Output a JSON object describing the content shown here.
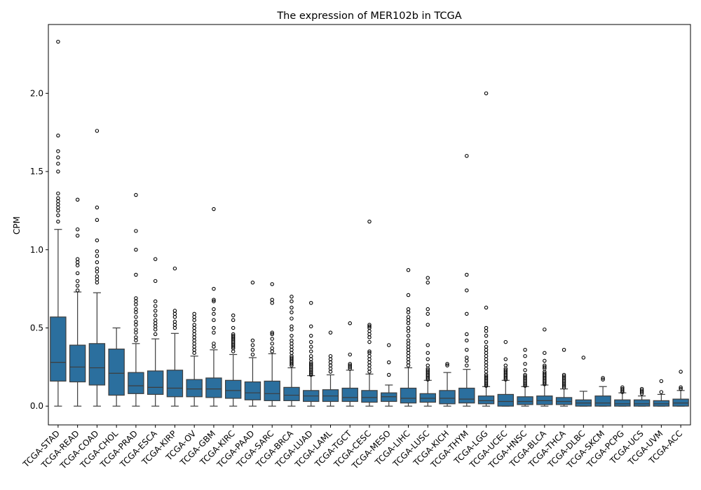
{
  "chart_data": {
    "type": "box",
    "title": "The expression of MER102b in TCGA",
    "xlabel": "",
    "ylabel": "CPM",
    "ylim": [
      -0.12,
      2.44
    ],
    "yticks": [
      0.0,
      0.5,
      1.0,
      1.5,
      2.0
    ],
    "ytick_labels": [
      "0.0",
      "0.5",
      "1.0",
      "1.5",
      "2.0"
    ],
    "grid": false,
    "box_color": "#2b6f9e",
    "categories": [
      "TCGA-STAD",
      "TCGA-READ",
      "TCGA-COAD",
      "TCGA-CHOL",
      "TCGA-PRAD",
      "TCGA-ESCA",
      "TCGA-KIRP",
      "TCGA-OV",
      "TCGA-GBM",
      "TCGA-KIRC",
      "TCGA-PAAD",
      "TCGA-SARC",
      "TCGA-BRCA",
      "TCGA-LUAD",
      "TCGA-LAML",
      "TCGA-TGCT",
      "TCGA-CESC",
      "TCGA-MESO",
      "TCGA-LIHC",
      "TCGA-LUSC",
      "TCGA-KICH",
      "TCGA-THYM",
      "TCGA-LGG",
      "TCGA-UCEC",
      "TCGA-HNSC",
      "TCGA-BLCA",
      "TCGA-THCA",
      "TCGA-DLBC",
      "TCGA-SKCM",
      "TCGA-PCPG",
      "TCGA-UCS",
      "TCGA-UVM",
      "TCGA-ACC"
    ],
    "boxes": [
      {
        "whislo": 0.0,
        "q1": 0.16,
        "med": 0.28,
        "q3": 0.57,
        "whishi": 1.13,
        "fliers": [
          1.18,
          1.22,
          1.25,
          1.27,
          1.29,
          1.31,
          1.33,
          1.36,
          1.5,
          1.55,
          1.59,
          1.63,
          1.73,
          2.33
        ]
      },
      {
        "whislo": 0.0,
        "q1": 0.155,
        "med": 0.25,
        "q3": 0.39,
        "whishi": 0.73,
        "fliers": [
          0.74,
          0.77,
          0.8,
          0.85,
          0.9,
          0.92,
          0.94,
          1.09,
          1.13,
          1.32
        ]
      },
      {
        "whislo": 0.0,
        "q1": 0.135,
        "med": 0.245,
        "q3": 0.4,
        "whishi": 0.725,
        "fliers": [
          0.79,
          0.81,
          0.83,
          0.86,
          0.88,
          0.92,
          0.96,
          0.99,
          1.06,
          1.19,
          1.27,
          1.76
        ]
      },
      {
        "whislo": 0.0,
        "q1": 0.07,
        "med": 0.21,
        "q3": 0.365,
        "whishi": 0.5,
        "fliers": []
      },
      {
        "whislo": 0.0,
        "q1": 0.08,
        "med": 0.13,
        "q3": 0.215,
        "whishi": 0.4,
        "fliers": [
          0.42,
          0.44,
          0.47,
          0.49,
          0.52,
          0.54,
          0.57,
          0.6,
          0.62,
          0.65,
          0.67,
          0.69,
          0.84,
          1.0,
          1.12,
          1.35
        ]
      },
      {
        "whislo": 0.0,
        "q1": 0.075,
        "med": 0.12,
        "q3": 0.225,
        "whishi": 0.43,
        "fliers": [
          0.46,
          0.49,
          0.51,
          0.53,
          0.55,
          0.58,
          0.61,
          0.64,
          0.67,
          0.8,
          0.94
        ]
      },
      {
        "whislo": 0.0,
        "q1": 0.06,
        "med": 0.115,
        "q3": 0.23,
        "whishi": 0.465,
        "fliers": [
          0.5,
          0.52,
          0.54,
          0.57,
          0.59,
          0.61,
          0.88
        ]
      },
      {
        "whislo": 0.0,
        "q1": 0.06,
        "med": 0.11,
        "q3": 0.17,
        "whishi": 0.32,
        "fliers": [
          0.34,
          0.36,
          0.38,
          0.4,
          0.42,
          0.44,
          0.46,
          0.48,
          0.5,
          0.52,
          0.55,
          0.57,
          0.59
        ]
      },
      {
        "whislo": 0.0,
        "q1": 0.055,
        "med": 0.11,
        "q3": 0.18,
        "whishi": 0.36,
        "fliers": [
          0.38,
          0.4,
          0.47,
          0.5,
          0.55,
          0.59,
          0.62,
          0.67,
          0.68,
          0.75,
          1.26
        ]
      },
      {
        "whislo": 0.0,
        "q1": 0.05,
        "med": 0.1,
        "q3": 0.165,
        "whishi": 0.33,
        "fliers": [
          0.35,
          0.37,
          0.38,
          0.39,
          0.4,
          0.41,
          0.42,
          0.43,
          0.44,
          0.45,
          0.46,
          0.5,
          0.55,
          0.58
        ]
      },
      {
        "whislo": 0.0,
        "q1": 0.04,
        "med": 0.085,
        "q3": 0.155,
        "whishi": 0.31,
        "fliers": [
          0.33,
          0.36,
          0.39,
          0.42,
          0.79
        ]
      },
      {
        "whislo": 0.0,
        "q1": 0.035,
        "med": 0.08,
        "q3": 0.16,
        "whishi": 0.335,
        "fliers": [
          0.35,
          0.37,
          0.4,
          0.43,
          0.46,
          0.47,
          0.66,
          0.68,
          0.78
        ]
      },
      {
        "whislo": 0.0,
        "q1": 0.035,
        "med": 0.07,
        "q3": 0.12,
        "whishi": 0.245,
        "fliers": [
          0.26,
          0.27,
          0.28,
          0.29,
          0.3,
          0.31,
          0.32,
          0.34,
          0.36,
          0.38,
          0.4,
          0.42,
          0.45,
          0.49,
          0.51,
          0.56,
          0.6,
          0.63,
          0.67,
          0.7
        ]
      },
      {
        "whislo": 0.0,
        "q1": 0.03,
        "med": 0.065,
        "q3": 0.1,
        "whishi": 0.195,
        "fliers": [
          0.2,
          0.21,
          0.22,
          0.23,
          0.24,
          0.25,
          0.26,
          0.27,
          0.28,
          0.3,
          0.32,
          0.35,
          0.38,
          0.41,
          0.45,
          0.51,
          0.66
        ]
      },
      {
        "whislo": 0.0,
        "q1": 0.03,
        "med": 0.065,
        "q3": 0.105,
        "whishi": 0.2,
        "fliers": [
          0.22,
          0.24,
          0.26,
          0.28,
          0.3,
          0.32,
          0.47
        ]
      },
      {
        "whislo": 0.0,
        "q1": 0.03,
        "med": 0.055,
        "q3": 0.115,
        "whishi": 0.23,
        "fliers": [
          0.24,
          0.25,
          0.26,
          0.27,
          0.33,
          0.53
        ]
      },
      {
        "whislo": 0.0,
        "q1": 0.025,
        "med": 0.055,
        "q3": 0.1,
        "whishi": 0.205,
        "fliers": [
          0.22,
          0.24,
          0.26,
          0.28,
          0.3,
          0.32,
          0.34,
          0.35,
          0.41,
          0.44,
          0.46,
          0.48,
          0.5,
          0.51,
          0.52,
          1.18
        ]
      },
      {
        "whislo": 0.0,
        "q1": 0.03,
        "med": 0.06,
        "q3": 0.085,
        "whishi": 0.135,
        "fliers": [
          0.2,
          0.28,
          0.39
        ]
      },
      {
        "whislo": 0.0,
        "q1": 0.02,
        "med": 0.05,
        "q3": 0.115,
        "whishi": 0.245,
        "fliers": [
          0.26,
          0.28,
          0.3,
          0.32,
          0.34,
          0.36,
          0.38,
          0.4,
          0.42,
          0.45,
          0.48,
          0.5,
          0.53,
          0.55,
          0.57,
          0.6,
          0.62,
          0.71,
          0.87
        ]
      },
      {
        "whislo": 0.0,
        "q1": 0.025,
        "med": 0.05,
        "q3": 0.08,
        "whishi": 0.165,
        "fliers": [
          0.17,
          0.18,
          0.19,
          0.2,
          0.21,
          0.22,
          0.23,
          0.24,
          0.26,
          0.3,
          0.34,
          0.39,
          0.52,
          0.59,
          0.62,
          0.79,
          0.82
        ]
      },
      {
        "whislo": 0.0,
        "q1": 0.015,
        "med": 0.05,
        "q3": 0.1,
        "whishi": 0.215,
        "fliers": [
          0.26,
          0.27
        ]
      },
      {
        "whislo": 0.0,
        "q1": 0.02,
        "med": 0.045,
        "q3": 0.115,
        "whishi": 0.235,
        "fliers": [
          0.26,
          0.29,
          0.31,
          0.36,
          0.42,
          0.46,
          0.59,
          0.74,
          0.84,
          1.6
        ]
      },
      {
        "whislo": 0.0,
        "q1": 0.015,
        "med": 0.035,
        "q3": 0.065,
        "whishi": 0.125,
        "fliers": [
          0.13,
          0.14,
          0.15,
          0.16,
          0.17,
          0.18,
          0.19,
          0.2,
          0.22,
          0.24,
          0.26,
          0.28,
          0.3,
          0.32,
          0.34,
          0.36,
          0.38,
          0.41,
          0.45,
          0.48,
          0.5,
          0.63,
          2.0
        ]
      },
      {
        "whislo": 0.0,
        "q1": 0.0,
        "med": 0.03,
        "q3": 0.075,
        "whishi": 0.165,
        "fliers": [
          0.17,
          0.18,
          0.19,
          0.2,
          0.21,
          0.22,
          0.23,
          0.24,
          0.26,
          0.3,
          0.41
        ]
      },
      {
        "whislo": 0.0,
        "q1": 0.01,
        "med": 0.03,
        "q3": 0.06,
        "whishi": 0.125,
        "fliers": [
          0.13,
          0.14,
          0.15,
          0.16,
          0.17,
          0.18,
          0.19,
          0.2,
          0.23,
          0.27,
          0.32,
          0.36
        ]
      },
      {
        "whislo": 0.0,
        "q1": 0.01,
        "med": 0.035,
        "q3": 0.065,
        "whishi": 0.135,
        "fliers": [
          0.14,
          0.15,
          0.16,
          0.17,
          0.18,
          0.19,
          0.2,
          0.21,
          0.22,
          0.24,
          0.25,
          0.26,
          0.29,
          0.34,
          0.49
        ]
      },
      {
        "whislo": 0.0,
        "q1": 0.01,
        "med": 0.03,
        "q3": 0.055,
        "whishi": 0.11,
        "fliers": [
          0.12,
          0.13,
          0.14,
          0.15,
          0.16,
          0.17,
          0.18,
          0.19,
          0.2,
          0.36
        ]
      },
      {
        "whislo": 0.0,
        "q1": 0.0,
        "med": 0.02,
        "q3": 0.04,
        "whishi": 0.095,
        "fliers": [
          0.31
        ]
      },
      {
        "whislo": 0.0,
        "q1": 0.0,
        "med": 0.02,
        "q3": 0.065,
        "whishi": 0.125,
        "fliers": [
          0.17,
          0.18
        ]
      },
      {
        "whislo": 0.0,
        "q1": 0.0,
        "med": 0.015,
        "q3": 0.04,
        "whishi": 0.085,
        "fliers": [
          0.09,
          0.1,
          0.11,
          0.12
        ]
      },
      {
        "whislo": 0.0,
        "q1": 0.0,
        "med": 0.015,
        "q3": 0.04,
        "whishi": 0.065,
        "fliers": [
          0.08,
          0.09,
          0.1,
          0.11
        ]
      },
      {
        "whislo": 0.0,
        "q1": 0.0,
        "med": 0.015,
        "q3": 0.035,
        "whishi": 0.075,
        "fliers": [
          0.09,
          0.16
        ]
      },
      {
        "whislo": 0.0,
        "q1": 0.0,
        "med": 0.02,
        "q3": 0.045,
        "whishi": 0.1,
        "fliers": [
          0.11,
          0.12,
          0.22
        ]
      }
    ]
  }
}
